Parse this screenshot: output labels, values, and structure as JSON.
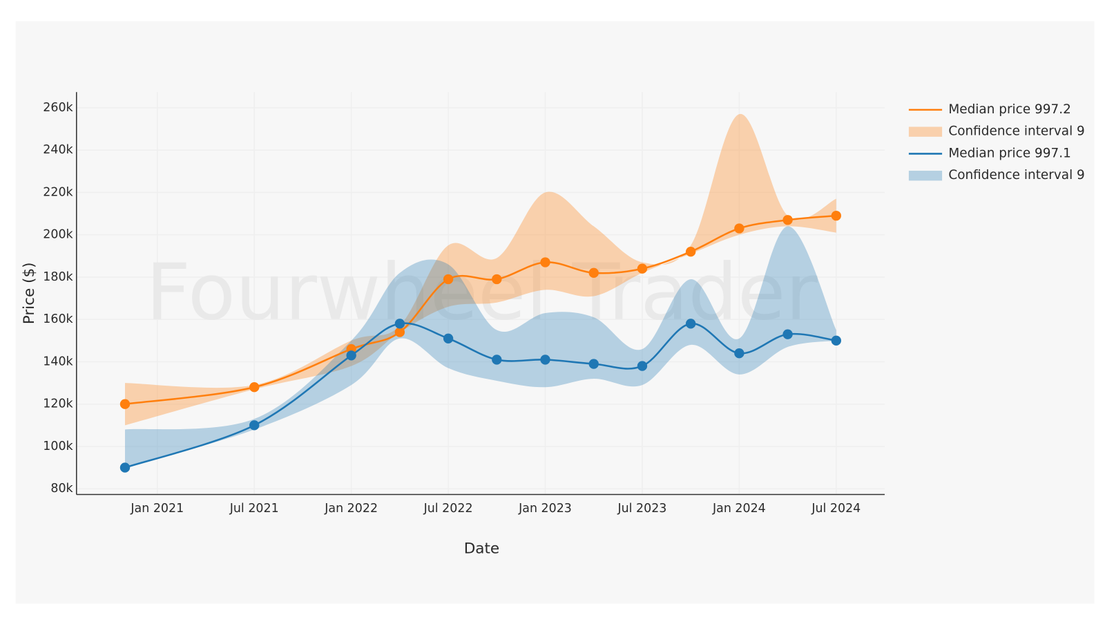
{
  "chart_data": {
    "type": "line",
    "watermark": "Fourwheel Trader",
    "x_label": "Date",
    "y_label": "Price ($)",
    "x": [
      "2020-11",
      "2021-07",
      "2022-01",
      "2022-04",
      "2022-07",
      "2022-10",
      "2023-01",
      "2023-04",
      "2023-07",
      "2023-10",
      "2024-01",
      "2024-04",
      "2024-07"
    ],
    "xlim": [
      "2020-08",
      "2024-10"
    ],
    "xticks": [
      {
        "value": "2021-01",
        "label": "Jan 2021"
      },
      {
        "value": "2021-07",
        "label": "Jul 2021"
      },
      {
        "value": "2022-01",
        "label": "Jan 2022"
      },
      {
        "value": "2022-07",
        "label": "Jul 2022"
      },
      {
        "value": "2023-01",
        "label": "Jan 2023"
      },
      {
        "value": "2023-07",
        "label": "Jul 2023"
      },
      {
        "value": "2024-01",
        "label": "Jan 2024"
      },
      {
        "value": "2024-07",
        "label": "Jul 2024"
      }
    ],
    "ylim": [
      77300,
      267400
    ],
    "yticks": [
      {
        "value": 80000,
        "label": "80k"
      },
      {
        "value": 100000,
        "label": "100k"
      },
      {
        "value": 120000,
        "label": "120k"
      },
      {
        "value": 140000,
        "label": "140k"
      },
      {
        "value": 160000,
        "label": "160k"
      },
      {
        "value": 180000,
        "label": "180k"
      },
      {
        "value": 200000,
        "label": "200k"
      },
      {
        "value": 220000,
        "label": "220k"
      },
      {
        "value": 240000,
        "label": "240k"
      },
      {
        "value": 260000,
        "label": "260k"
      }
    ],
    "grid": true,
    "legend": "right",
    "series": [
      {
        "name": "Median price 997.2",
        "color": "#ff7f0e",
        "values": [
          120000,
          128000,
          146000,
          154000,
          179000,
          179000,
          187000,
          182000,
          184000,
          192000,
          203000,
          207000,
          209000
        ]
      },
      {
        "name": "Median price 997.1",
        "color": "#1f77b4",
        "values": [
          90000,
          110000,
          143000,
          158000,
          151000,
          141000,
          141000,
          139000,
          138000,
          158000,
          144000,
          153000,
          150000
        ]
      }
    ],
    "bands": [
      {
        "name": "Confidence interval 9",
        "color": "rgba(255,127,14,0.32)",
        "upper": [
          130000,
          129000,
          150000,
          157000,
          195000,
          189000,
          220000,
          204000,
          187000,
          195000,
          257000,
          209000,
          217000
        ],
        "lower": [
          110000,
          127000,
          138000,
          154000,
          166000,
          168000,
          174000,
          171000,
          182000,
          191000,
          200000,
          204000,
          201000
        ]
      },
      {
        "name": "Confidence interval 9",
        "color": "rgba(31,119,180,0.3)",
        "upper": [
          108000,
          113000,
          150000,
          182000,
          186000,
          155000,
          163000,
          161000,
          146000,
          179000,
          151000,
          204000,
          155000
        ],
        "lower": [
          90000,
          108000,
          129000,
          151000,
          137000,
          131000,
          128000,
          132000,
          129000,
          148000,
          134000,
          147000,
          150000
        ]
      }
    ]
  }
}
